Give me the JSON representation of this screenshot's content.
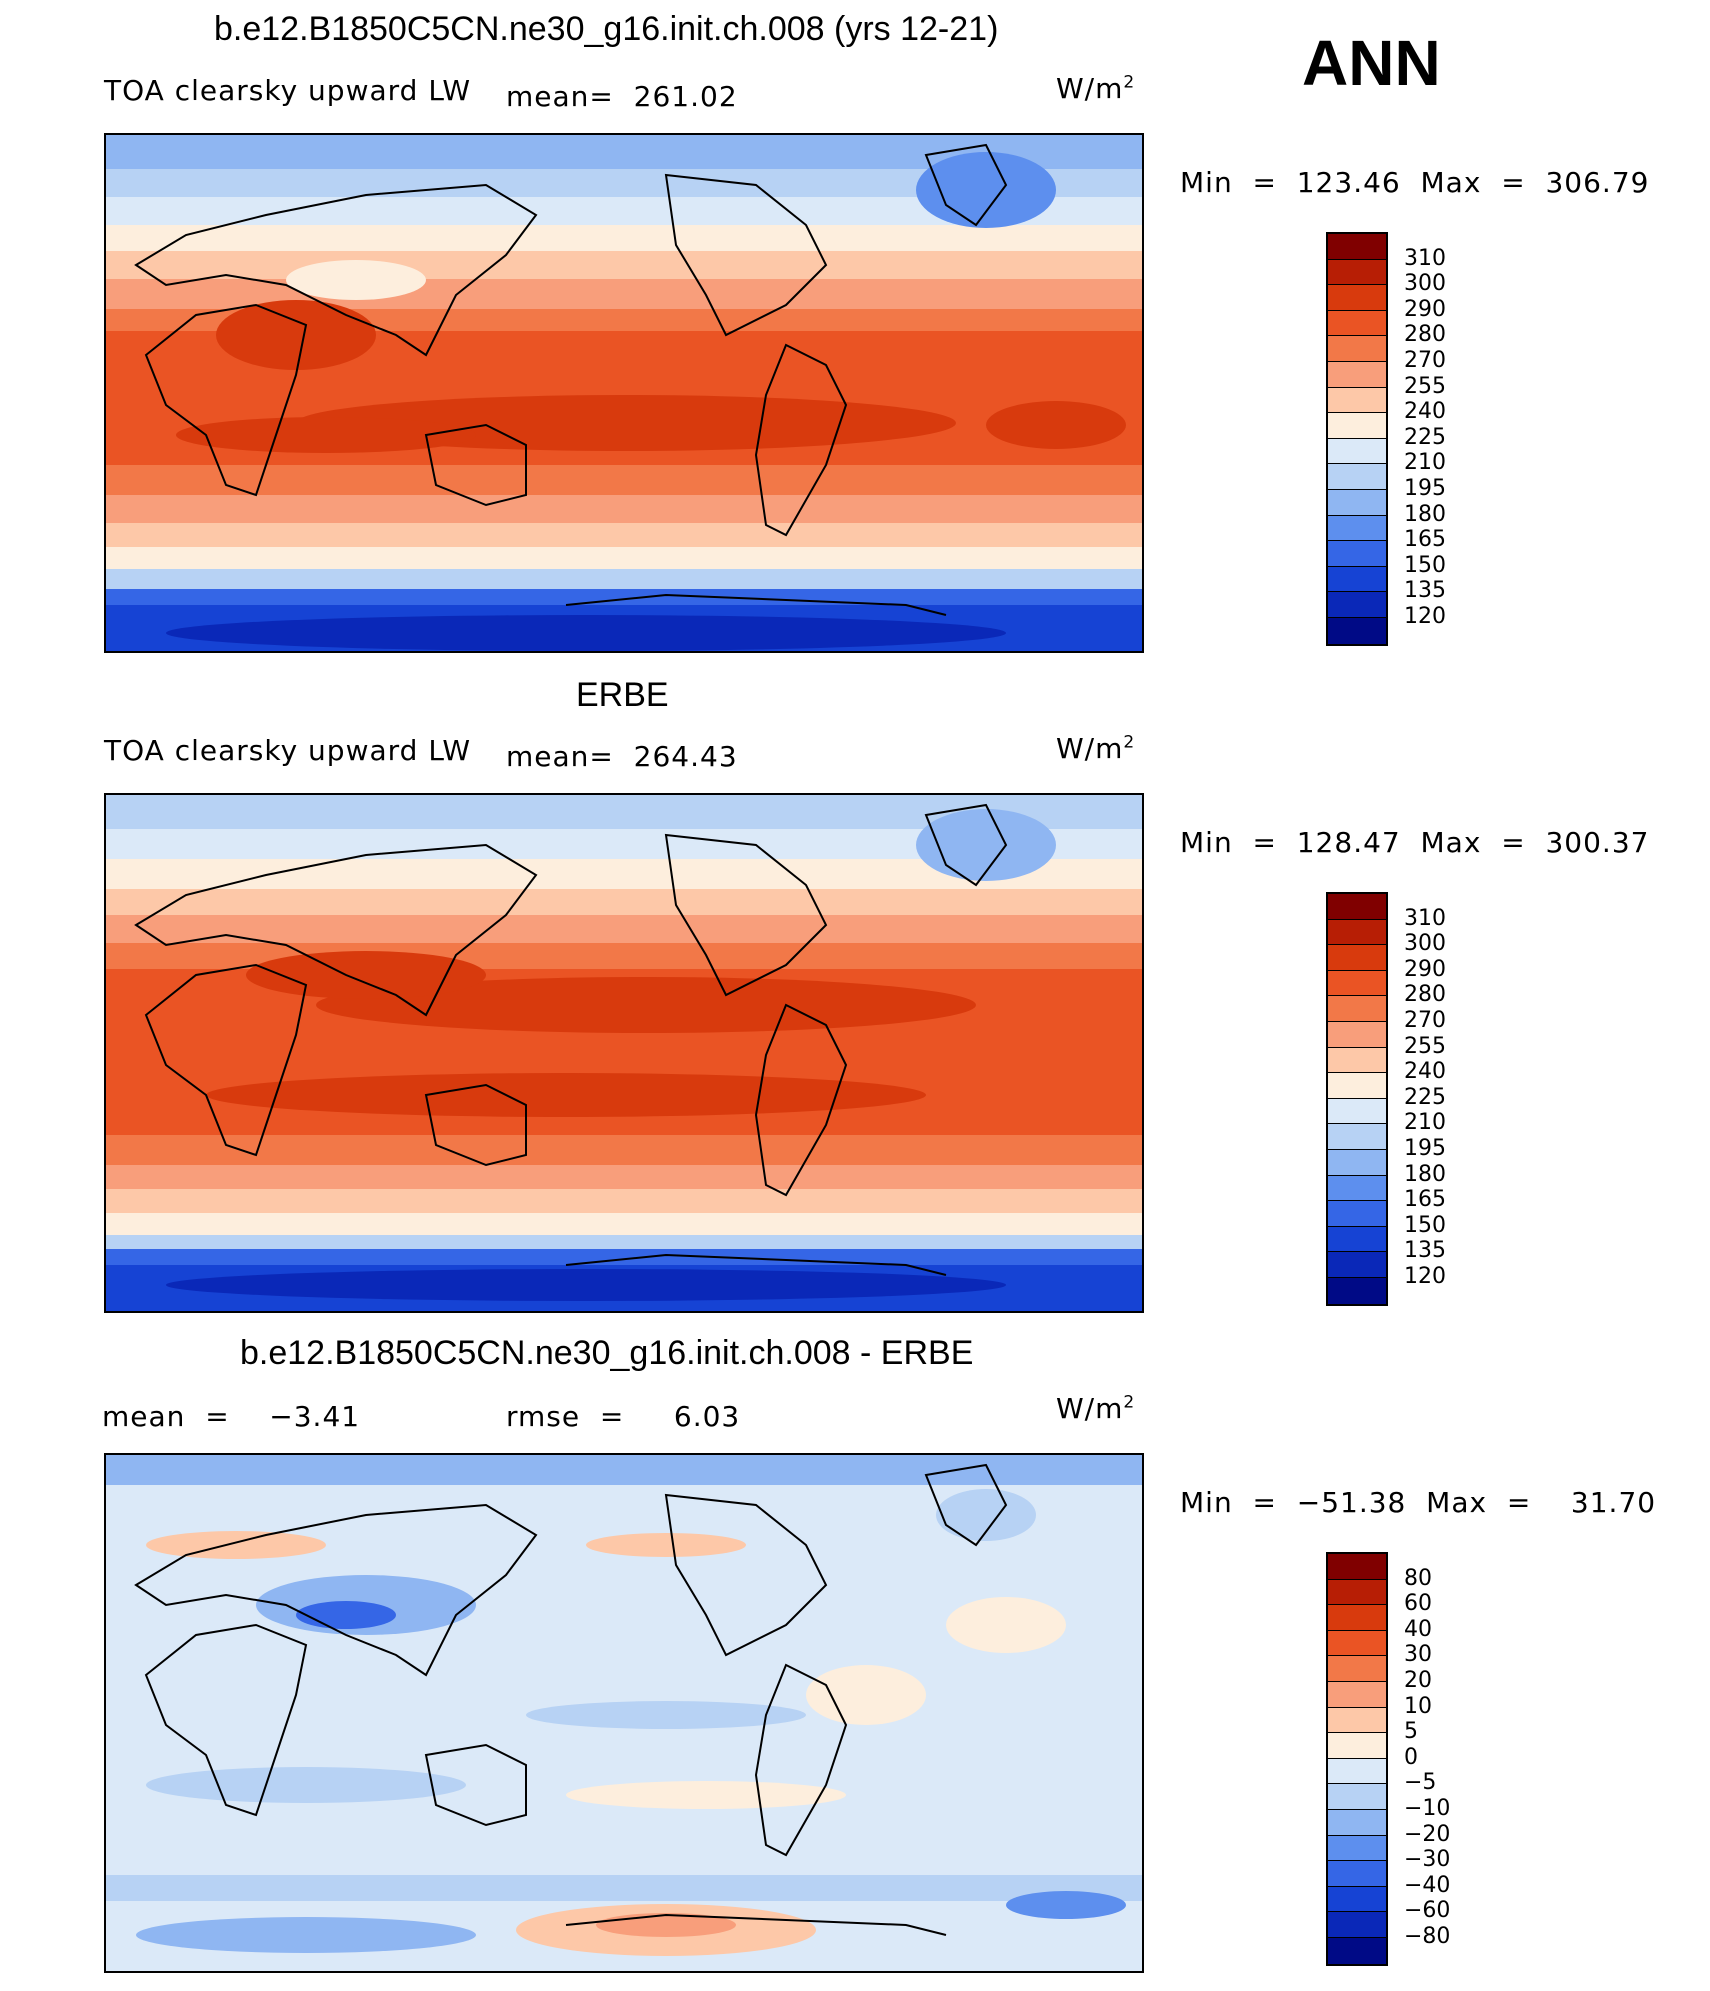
{
  "figure_label": "ANN",
  "units_label": "W/m",
  "units_exp": "2",
  "panels": [
    {
      "title": "b.e12.B1850C5CN.ne30_g16.init.ch.008 (yrs 12-21)",
      "variable": "TOA clearsky upward LW",
      "stat1": "mean=  261.02",
      "stat2": "",
      "minmax": "Min  =  123.46  Max  =  306.79"
    },
    {
      "title": "ERBE",
      "variable": "TOA clearsky upward LW",
      "stat1": "mean=  264.43",
      "stat2": "",
      "minmax": "Min  =  128.47  Max  =  300.37"
    },
    {
      "title": "b.e12.B1850C5CN.ne30_g16.init.ch.008 - ERBE",
      "variable": "",
      "stat1": "mean  =    −3.41",
      "stat2": "rmse  =     6.03",
      "minmax": "Min  =  −51.38  Max  =    31.70"
    }
  ],
  "colorbars": {
    "absolute": {
      "levels": [
        "310",
        "300",
        "290",
        "280",
        "270",
        "255",
        "240",
        "225",
        "210",
        "195",
        "180",
        "165",
        "150",
        "135",
        "120"
      ],
      "colors": [
        "#800000",
        "#b71e05",
        "#d83a0d",
        "#ea5424",
        "#f27848",
        "#f89e7b",
        "#fdc8a8",
        "#fdeedd",
        "#dbe9f8",
        "#b7d2f4",
        "#8fb6f2",
        "#5d8fee",
        "#3566e6",
        "#1643d4",
        "#0a28b8",
        "#000a86"
      ]
    },
    "difference": {
      "levels": [
        "80",
        "60",
        "40",
        "30",
        "20",
        "10",
        "5",
        "0",
        "−5",
        "−10",
        "−20",
        "−30",
        "−40",
        "−60",
        "−80"
      ],
      "colors": [
        "#800000",
        "#b71e05",
        "#d83a0d",
        "#ea5424",
        "#f27848",
        "#f89e7b",
        "#fdc8a8",
        "#fdeedd",
        "#dbe9f8",
        "#b7d2f4",
        "#8fb6f2",
        "#5d8fee",
        "#3566e6",
        "#1643d4",
        "#0a28b8",
        "#000a86"
      ]
    }
  }
}
